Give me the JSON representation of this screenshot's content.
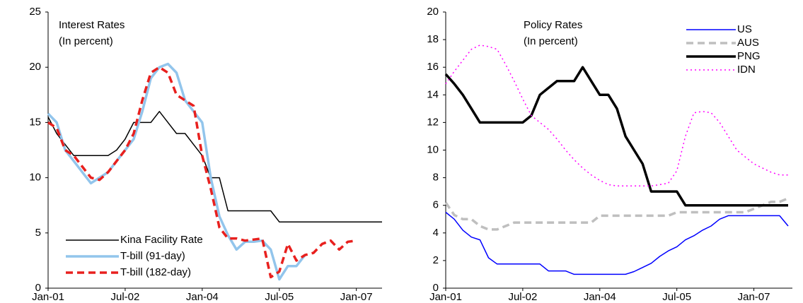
{
  "chart_data": [
    {
      "type": "line",
      "title": "Interest Rates",
      "subtitle": "(In percent)",
      "x": [
        0,
        2,
        4,
        6,
        8,
        10,
        12,
        14,
        16,
        18,
        20,
        22,
        24,
        26,
        28,
        30,
        32,
        34,
        36,
        38,
        40,
        42,
        44,
        46,
        48,
        50,
        52,
        54,
        56,
        58,
        60,
        62,
        64,
        66,
        68,
        70,
        72,
        74,
        76,
        78
      ],
      "xlim": [
        0,
        78
      ],
      "xticks": [
        {
          "value": 0,
          "label": "Jan-01"
        },
        {
          "value": 18,
          "label": "Jul-02"
        },
        {
          "value": 36,
          "label": "Jan-04"
        },
        {
          "value": 54,
          "label": "Jul-05"
        },
        {
          "value": 72,
          "label": "Jan-07"
        }
      ],
      "ylim": [
        0,
        25
      ],
      "yticks": [
        0,
        5,
        10,
        15,
        20,
        25
      ],
      "legend": "lower left",
      "series": [
        {
          "name": "Kina Facility Rate",
          "color": "#000000",
          "weight": "thin",
          "dash": "solid",
          "values": [
            15.5,
            14,
            13,
            12,
            12,
            12,
            12,
            12,
            12.5,
            13.5,
            15,
            15,
            15,
            16,
            15,
            14,
            14,
            13,
            12,
            10,
            10,
            7,
            7,
            7,
            7,
            7,
            7,
            6,
            6,
            6,
            6,
            6,
            6,
            6,
            6,
            6,
            6,
            6,
            6,
            6
          ]
        },
        {
          "name": "T-bill (91-day)",
          "color": "#92c5ec",
          "weight": "thick",
          "dash": "solid",
          "values": [
            15.8,
            15,
            12.5,
            11.5,
            10.5,
            9.5,
            10,
            10.5,
            11.5,
            12.5,
            13.5,
            16,
            19,
            20,
            20.3,
            19.5,
            17,
            16,
            15,
            10,
            6.5,
            4.8,
            3.5,
            4.2,
            4.2,
            4.3,
            3.5,
            0.8,
            2,
            2,
            3,
            null,
            null,
            null,
            null,
            null,
            null,
            null,
            null,
            null
          ]
        },
        {
          "name": "T-bill (182-day)",
          "color": "#e8201e",
          "weight": "thick",
          "dash": "dashed",
          "values": [
            15,
            14.5,
            12.5,
            12,
            11,
            10,
            9.8,
            10.5,
            11.5,
            12.5,
            14,
            17,
            19.5,
            20,
            19.5,
            17.5,
            17,
            16.5,
            12,
            9,
            5.5,
            4.5,
            4.5,
            4.3,
            4.4,
            4.5,
            1,
            1.5,
            4,
            2.5,
            3,
            3.2,
            4,
            4.3,
            3.5,
            4.2,
            4.3,
            null,
            null,
            null
          ]
        }
      ]
    },
    {
      "type": "line",
      "title": "Policy Rates",
      "subtitle": "(In percent)",
      "x": [
        0,
        2,
        4,
        6,
        8,
        10,
        12,
        14,
        16,
        18,
        20,
        22,
        24,
        26,
        28,
        30,
        32,
        34,
        36,
        38,
        40,
        42,
        44,
        46,
        48,
        50,
        52,
        54,
        56,
        58,
        60,
        62,
        64,
        66,
        68,
        70,
        72,
        74,
        76,
        78,
        80
      ],
      "xlim": [
        0,
        81
      ],
      "xticks": [
        {
          "value": 0,
          "label": "Jan-01"
        },
        {
          "value": 18,
          "label": "Jul-02"
        },
        {
          "value": 36,
          "label": "Jan-04"
        },
        {
          "value": 54,
          "label": "Jul-05"
        },
        {
          "value": 72,
          "label": "Jan-07"
        }
      ],
      "ylim": [
        0,
        20
      ],
      "yticks": [
        0,
        2,
        4,
        6,
        8,
        10,
        12,
        14,
        16,
        18,
        20
      ],
      "legend": "upper right",
      "series": [
        {
          "name": "US",
          "color": "#0000ff",
          "weight": "thin",
          "dash": "solid",
          "values": [
            5.5,
            5,
            4.2,
            3.7,
            3.5,
            2.2,
            1.75,
            1.75,
            1.75,
            1.75,
            1.75,
            1.75,
            1.25,
            1.25,
            1.25,
            1,
            1,
            1,
            1,
            1,
            1,
            1,
            1.2,
            1.5,
            1.8,
            2.3,
            2.7,
            3,
            3.5,
            3.8,
            4.2,
            4.5,
            5,
            5.25,
            5.25,
            5.25,
            5.25,
            5.25,
            5.25,
            5.25,
            4.5
          ]
        },
        {
          "name": "AUS",
          "color": "#bfbfbf",
          "weight": "thick",
          "dash": "dashed",
          "values": [
            6.2,
            5.3,
            5,
            5,
            4.5,
            4.25,
            4.25,
            4.5,
            4.75,
            4.75,
            4.75,
            4.75,
            4.75,
            4.75,
            4.75,
            4.75,
            4.75,
            4.75,
            5.25,
            5.25,
            5.25,
            5.25,
            5.25,
            5.25,
            5.25,
            5.25,
            5.25,
            5.5,
            5.5,
            5.5,
            5.5,
            5.5,
            5.5,
            5.5,
            5.5,
            5.5,
            5.75,
            6,
            6.25,
            6.25,
            6.5
          ]
        },
        {
          "name": "PNG",
          "color": "#000000",
          "weight": "thick",
          "dash": "solid",
          "values": [
            15.5,
            14.8,
            14,
            13,
            12,
            12,
            12,
            12,
            12,
            12,
            12.5,
            14,
            14.5,
            15,
            15,
            15,
            16,
            15,
            14,
            14,
            13,
            11,
            10,
            9,
            7,
            7,
            7,
            7,
            6,
            6,
            6,
            6,
            6,
            6,
            6,
            6,
            6,
            6,
            6,
            6,
            6
          ]
        },
        {
          "name": "IDN",
          "color": "#ff00ff",
          "weight": "thin",
          "dash": "dotted",
          "values": [
            14.8,
            15.7,
            16.5,
            17.3,
            17.6,
            17.5,
            17.3,
            16.2,
            15,
            13.7,
            12.5,
            12,
            11.5,
            10.8,
            10,
            9.3,
            8.7,
            8.2,
            7.8,
            7.5,
            7.4,
            7.4,
            7.4,
            7.4,
            7.4,
            7.5,
            7.6,
            8.5,
            11,
            12.7,
            12.8,
            12.7,
            12,
            11,
            10,
            9.5,
            9,
            8.7,
            8.4,
            8.2,
            8.2
          ]
        }
      ]
    }
  ]
}
